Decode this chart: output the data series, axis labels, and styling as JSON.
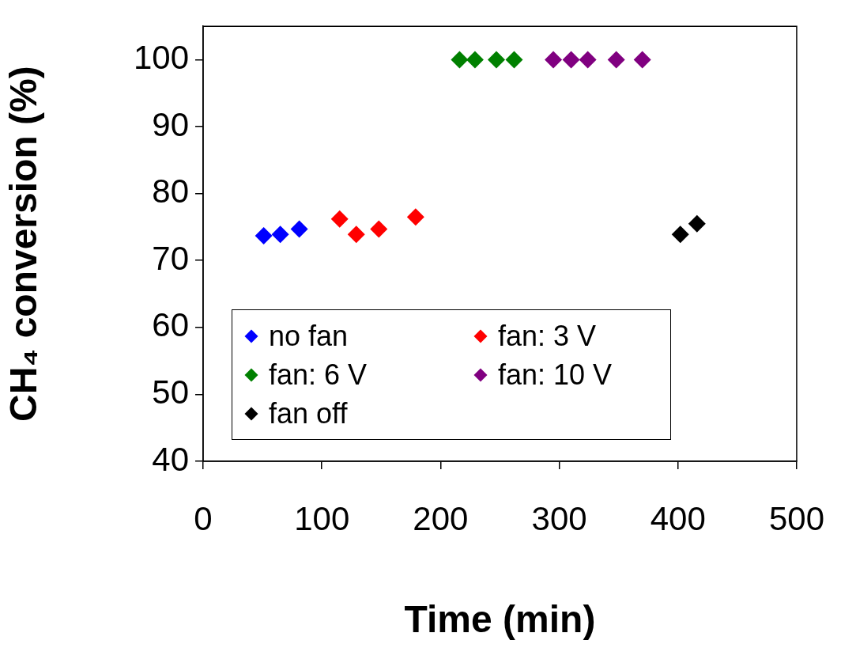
{
  "chart_data": {
    "type": "scatter",
    "xlabel": "Time (min)",
    "ylabel": "CH₄ conversion (%)",
    "xlim": [
      0,
      500
    ],
    "xticks": [
      0,
      100,
      200,
      300,
      400,
      500
    ],
    "ylim": [
      40,
      105
    ],
    "yticks": [
      40,
      50,
      60,
      70,
      80,
      90,
      100
    ],
    "grid": false,
    "legend": "bottom",
    "marker": "diamond",
    "series": [
      {
        "name": "no fan",
        "color": "#0000ff",
        "x": [
          51,
          65,
          81
        ],
        "values": [
          73.7,
          73.9,
          74.7
        ]
      },
      {
        "name": "fan: 3 V",
        "color": "#ff0000",
        "x": [
          115,
          129,
          148,
          179
        ],
        "values": [
          76.2,
          73.9,
          74.7,
          76.5
        ]
      },
      {
        "name": "fan: 6 V",
        "color": "#008000",
        "x": [
          216,
          229,
          247,
          262
        ],
        "values": [
          100,
          100,
          100,
          100
        ]
      },
      {
        "name": "fan: 10 V",
        "color": "#800080",
        "x": [
          295,
          310,
          324,
          348,
          370
        ],
        "values": [
          100,
          100,
          100,
          100,
          100
        ]
      },
      {
        "name": "fan off",
        "color": "#000000",
        "x": [
          402,
          416
        ],
        "values": [
          73.9,
          75.5
        ]
      }
    ]
  }
}
